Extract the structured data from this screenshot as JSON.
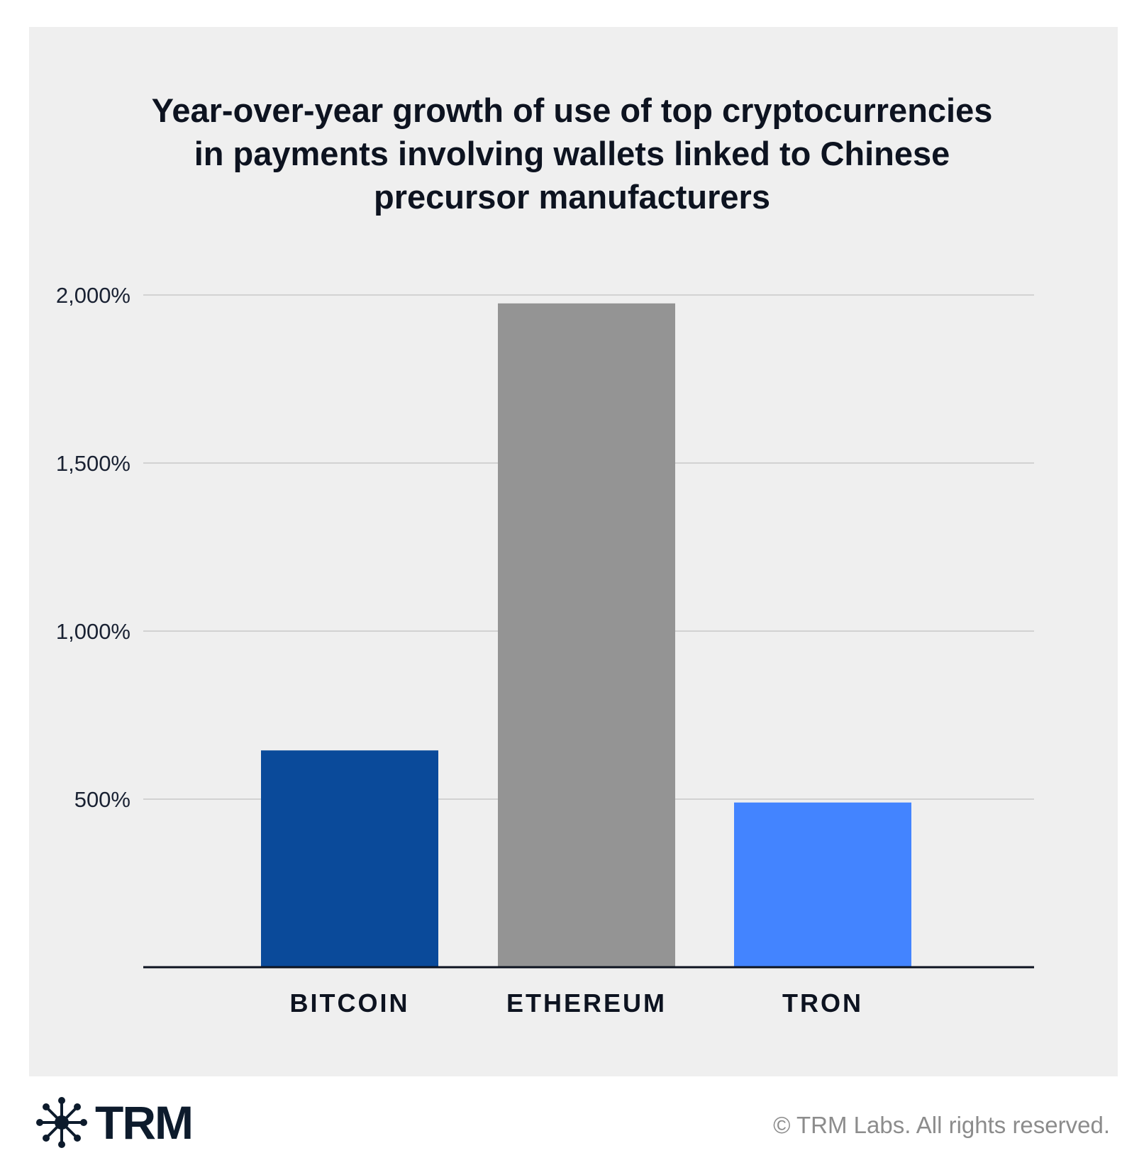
{
  "chart_data": {
    "type": "bar",
    "title_lines": [
      "Year-over-year growth of use of top cryptocurrencies",
      "in payments involving wallets linked to Chinese",
      "precursor manufacturers"
    ],
    "categories": [
      "BITCOIN",
      "ETHEREUM",
      "TRON"
    ],
    "values": [
      645,
      1975,
      490
    ],
    "bar_colors": [
      "#0a4a9a",
      "#949494",
      "#4384ff"
    ],
    "ylim": [
      0,
      2000
    ],
    "yticks": [
      {
        "value": 500,
        "label": "500%"
      },
      {
        "value": 1000,
        "label": "1,000%"
      },
      {
        "value": 1500,
        "label": "1,500%"
      },
      {
        "value": 2000,
        "label": "2,000%"
      }
    ],
    "grid": true,
    "xlabel": "",
    "ylabel": ""
  },
  "footer": {
    "brand": "TRM",
    "copyright": "© TRM Labs. All rights reserved."
  },
  "colors": {
    "panel": "#efefef",
    "text": "#0d1320",
    "grid": "#d2d2d2",
    "axis": "#0d1320"
  }
}
